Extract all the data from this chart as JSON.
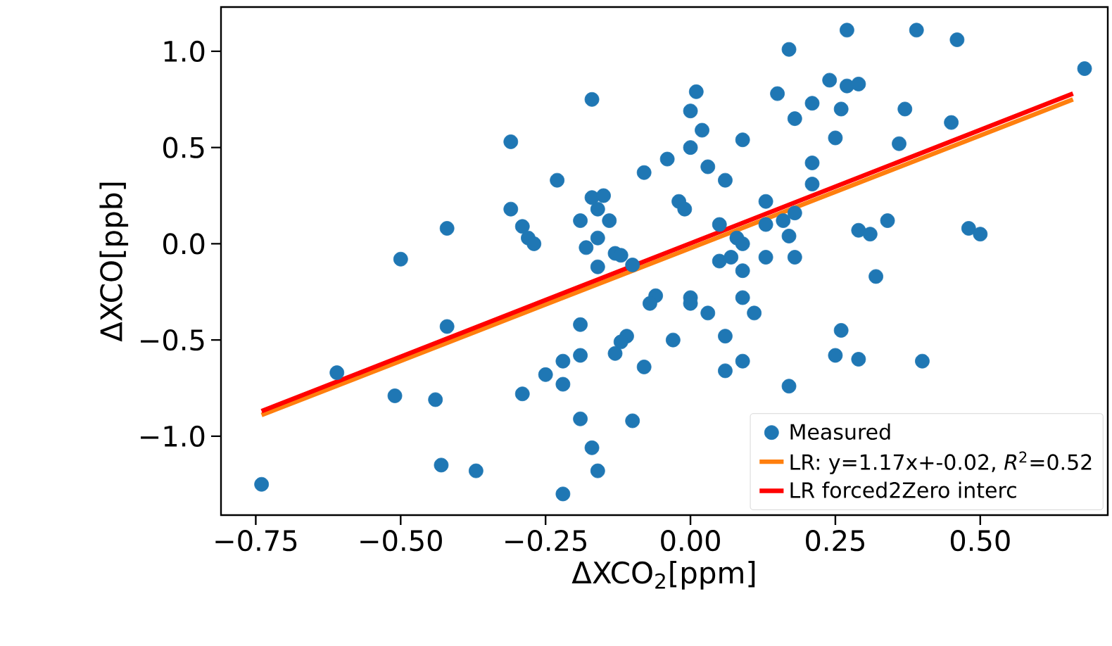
{
  "chart_data": {
    "type": "scatter",
    "xlabel": "ΔXCO$_{2}$[ppm]",
    "ylabel": "ΔXCO[ppb]",
    "xlim": [
      -0.81,
      0.72
    ],
    "ylim": [
      -1.41,
      1.23
    ],
    "xticks": [
      {
        "value": -0.75,
        "label": "−0.75"
      },
      {
        "value": -0.5,
        "label": "−0.50"
      },
      {
        "value": -0.25,
        "label": "−0.25"
      },
      {
        "value": 0,
        "label": "0.00"
      },
      {
        "value": 0.25,
        "label": "0.25"
      },
      {
        "value": 0.5,
        "label": "0.50"
      }
    ],
    "yticks": [
      {
        "value": -1.0,
        "label": "−1.0"
      },
      {
        "value": -0.5,
        "label": "−0.5"
      },
      {
        "value": 0,
        "label": "0.0"
      },
      {
        "value": 0.5,
        "label": "0.5"
      },
      {
        "value": 1.0,
        "label": "1.0"
      }
    ],
    "legend": "bottom right",
    "series": [
      {
        "name": "Measured",
        "marker": "circle",
        "color": "#1f77b4",
        "x": [
          -0.17,
          -0.31,
          -0.04,
          -0.08,
          -0.23,
          -0.17,
          -0.15,
          -0.16,
          -0.31,
          -0.19,
          -0.14,
          -0.29,
          -0.42,
          -0.28,
          -0.27,
          -0.16,
          -0.18,
          -0.13,
          -0.12,
          -0.1,
          -0.16,
          -0.5,
          -0.02,
          -0.01,
          0.27,
          0.39,
          0.46,
          0.17,
          0.68,
          0.01,
          0.15,
          0.24,
          0.27,
          0.29,
          0.0,
          0.21,
          0.26,
          0.37,
          0.18,
          0.02,
          0.45,
          0.09,
          0.25,
          0.36,
          0.0,
          0.03,
          0.21,
          0.06,
          0.21,
          0.13,
          0.05,
          0.13,
          0.16,
          0.18,
          0.08,
          0.09,
          0.17,
          0.29,
          0.31,
          0.34,
          0.48,
          0.5,
          0.05,
          0.07,
          0.13,
          0.18,
          0.09,
          0.32,
          -0.06,
          -0.07,
          0.0,
          0.0,
          0.09,
          0.03,
          0.11,
          -0.03,
          0.06,
          0.26,
          0.09,
          0.06,
          0.25,
          0.29,
          0.4,
          0.17,
          -0.42,
          -0.19,
          -0.11,
          -0.12,
          -0.13,
          -0.61,
          -0.22,
          -0.19,
          -0.25,
          -0.22,
          -0.08,
          -0.29,
          -0.51,
          -0.44,
          -0.19,
          -0.1,
          -0.17,
          -0.43,
          -0.16,
          -0.37,
          -0.22,
          -0.74
        ],
        "values": [
          0.75,
          0.53,
          0.44,
          0.37,
          0.33,
          0.24,
          0.25,
          0.18,
          0.18,
          0.12,
          0.12,
          0.09,
          0.08,
          0.03,
          0.0,
          0.03,
          -0.02,
          -0.05,
          -0.06,
          -0.11,
          -0.12,
          -0.08,
          0.22,
          0.18,
          1.11,
          1.11,
          1.06,
          1.01,
          0.91,
          0.79,
          0.78,
          0.85,
          0.82,
          0.83,
          0.69,
          0.73,
          0.7,
          0.7,
          0.65,
          0.59,
          0.63,
          0.54,
          0.55,
          0.52,
          0.5,
          0.4,
          0.42,
          0.33,
          0.31,
          0.22,
          0.1,
          0.1,
          0.12,
          0.16,
          0.03,
          0.0,
          0.04,
          0.07,
          0.05,
          0.12,
          0.08,
          0.05,
          -0.09,
          -0.07,
          -0.07,
          -0.07,
          -0.14,
          -0.17,
          -0.27,
          -0.31,
          -0.28,
          -0.31,
          -0.28,
          -0.36,
          -0.36,
          -0.5,
          -0.48,
          -0.45,
          -0.61,
          -0.66,
          -0.58,
          -0.6,
          -0.61,
          -0.74,
          -0.43,
          -0.42,
          -0.48,
          -0.51,
          -0.57,
          -0.67,
          -0.61,
          -0.58,
          -0.68,
          -0.73,
          -0.64,
          -0.78,
          -0.79,
          -0.81,
          -0.91,
          -0.92,
          -1.06,
          -1.15,
          -1.18,
          -1.18,
          -1.3,
          -1.25
        ]
      },
      {
        "name": "LR: y=1.17x+-0.02, *R*$^{2}$=0.52",
        "type": "line",
        "marker": "none",
        "line_style": "solid",
        "color": "#ff7f0e",
        "x": [
          -0.74,
          0.66
        ],
        "values": [
          -0.89,
          0.75
        ]
      },
      {
        "name": "LR forced2Zero interc",
        "type": "line",
        "marker": "none",
        "line_style": "solid",
        "color": "#ff0000",
        "x": [
          -0.74,
          0.66
        ],
        "values": [
          -0.87,
          0.78
        ]
      }
    ]
  }
}
